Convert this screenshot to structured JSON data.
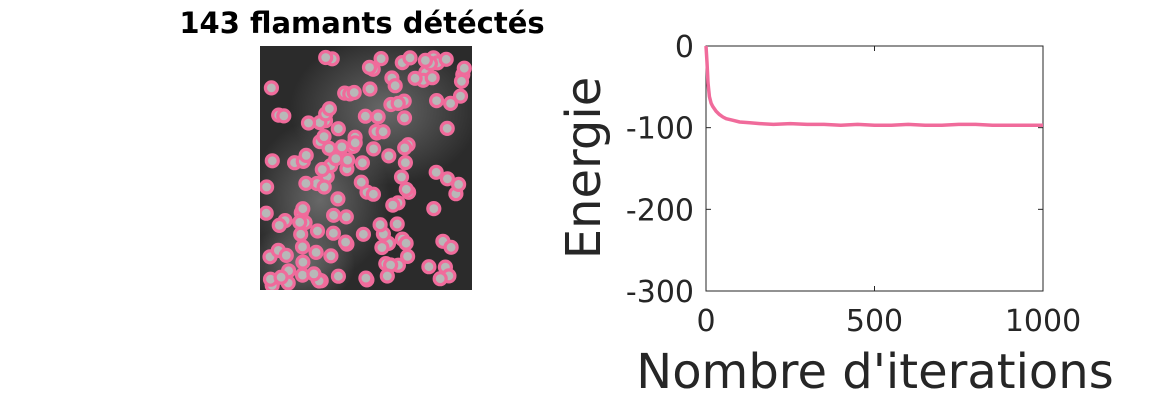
{
  "chart_data": [
    {
      "type": "image",
      "title": "143 flamants détéctés",
      "marker_color": "#f06b9b",
      "background": "grayscale micrograph",
      "detections_count": 143
    },
    {
      "type": "line",
      "title": "",
      "xlabel": "Nombre d'iterations",
      "ylabel": "Energie",
      "xlim": [
        0,
        1000
      ],
      "ylim": [
        -300,
        0
      ],
      "xticks": [
        0,
        500,
        1000
      ],
      "yticks": [
        0,
        -100,
        -200,
        -300
      ],
      "xtick_labels": [
        "0",
        "500",
        "1000"
      ],
      "ytick_labels": [
        "0",
        "-100",
        "-200",
        "-300"
      ],
      "grid": false,
      "series": [
        {
          "color": "#f06b9b",
          "x": [
            0,
            3,
            6,
            10,
            15,
            20,
            30,
            40,
            50,
            60,
            80,
            100,
            130,
            160,
            200,
            250,
            300,
            350,
            400,
            450,
            500,
            550,
            600,
            650,
            700,
            750,
            800,
            850,
            900,
            950,
            1000
          ],
          "y": [
            0,
            -20,
            -45,
            -62,
            -70,
            -74,
            -80,
            -84,
            -87,
            -89,
            -91,
            -93,
            -94,
            -95,
            -96,
            -95,
            -96,
            -96,
            -97,
            -96,
            -97,
            -97,
            -96,
            -97,
            -97,
            -96,
            -96,
            -97,
            -97,
            -97,
            -97
          ]
        }
      ]
    }
  ]
}
